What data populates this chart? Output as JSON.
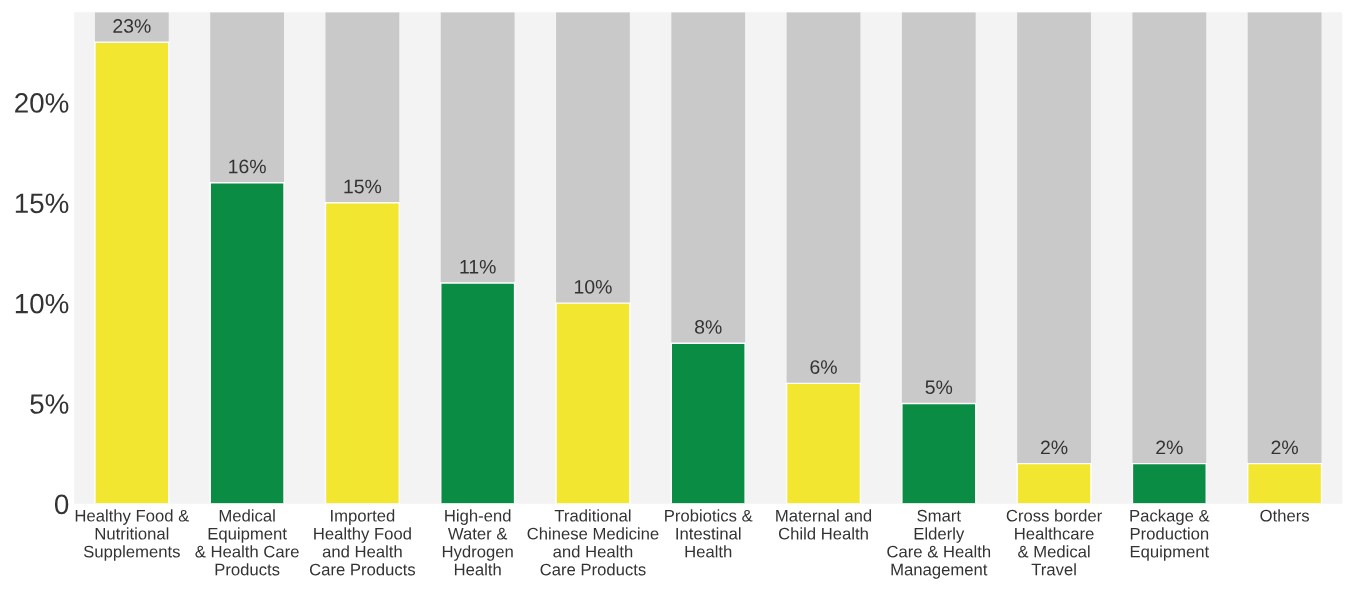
{
  "chart_data": {
    "type": "bar",
    "categories": [
      "Healthy Food &\nNutritional\nSupplements",
      "Medical\nEquipment\n& Health Care\nProducts",
      "Imported\nHealthy Food\nand Health\nCare Products",
      "High-end\nWater &\nHydrogen\nHealth",
      "Traditional\nChinese Medicine\nand Health\nCare Products",
      "Probiotics &\nIntestinal\nHealth",
      "Maternal and\nChild Health",
      "Smart\nElderly\nCare & Health\nManagement",
      "Cross border\nHealthcare\n& Medical\nTravel",
      "Package &\nProduction\nEquipment",
      "Others"
    ],
    "values": [
      23,
      16,
      15,
      11,
      10,
      8,
      6,
      5,
      2,
      2,
      2
    ],
    "colors": [
      "#f2e630",
      "#0b8c44",
      "#f2e630",
      "#0b8c44",
      "#f2e630",
      "#0b8c44",
      "#f2e630",
      "#0b8c44",
      "#f2e630",
      "#0b8c44",
      "#f2e630"
    ],
    "value_labels": [
      "23%",
      "16%",
      "15%",
      "11%",
      "10%",
      "8%",
      "6%",
      "5%",
      "2%",
      "2%",
      "2%"
    ],
    "ylim": [
      0,
      24.5
    ],
    "yticks": [
      0,
      {
        "value": 5,
        "label": "5%"
      },
      {
        "value": 10,
        "label": "10%"
      },
      {
        "value": 15,
        "label": "15%"
      },
      {
        "value": 20,
        "label": "20%"
      }
    ],
    "grid": false,
    "legend": false
  }
}
